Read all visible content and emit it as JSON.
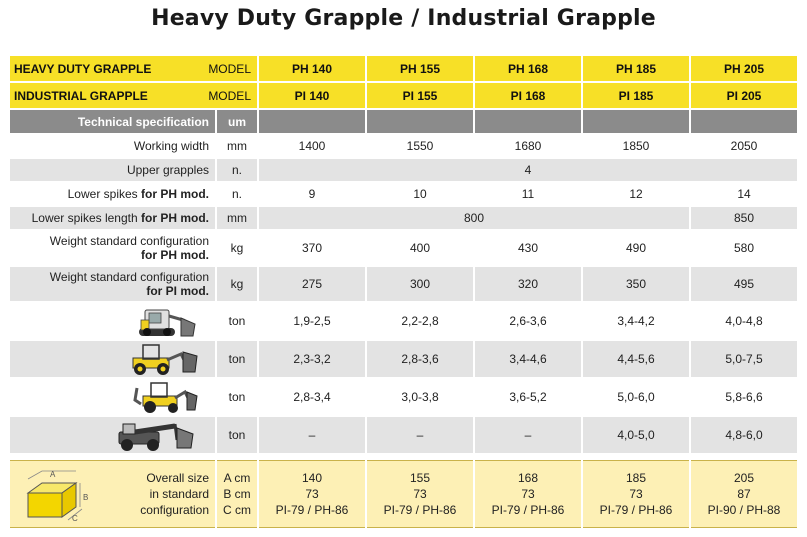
{
  "title": "Heavy Duty Grapple / Industrial Grapple",
  "header_rows": [
    {
      "name": "HEAVY DUTY GRAPPLE",
      "model_label": "MODEL",
      "models": [
        "PH 140",
        "PH 155",
        "PH 168",
        "PH 185",
        "PH 205"
      ]
    },
    {
      "name": "INDUSTRIAL GRAPPLE",
      "model_label": "MODEL",
      "models": [
        "PI 140",
        "PI 155",
        "PI 168",
        "PI 185",
        "PI 205"
      ]
    }
  ],
  "spec_header": {
    "label": "Technical specification",
    "um": "um"
  },
  "rows": {
    "working_width": {
      "label": "Working width",
      "um": "mm",
      "values": [
        "1400",
        "1550",
        "1680",
        "1850",
        "2050"
      ]
    },
    "upper_grapples": {
      "label": "Upper grapples",
      "um": "n.",
      "value": "4"
    },
    "lower_spikes": {
      "label": "Lower spikes ",
      "label_bold": "for PH mod.",
      "um": "n.",
      "values": [
        "9",
        "10",
        "11",
        "12",
        "14"
      ]
    },
    "lower_spikes_length": {
      "label": "Lower spikes length ",
      "label_bold": "for PH mod.",
      "um": "mm",
      "value_span": "800",
      "value_last": "850"
    },
    "weight_ph": {
      "label": "Weight standard configuration",
      "label_bold": "for PH mod.",
      "um": "kg",
      "values": [
        "370",
        "400",
        "430",
        "490",
        "580"
      ]
    },
    "weight_pi": {
      "label": "Weight standard configuration",
      "label_bold": "for PI mod.",
      "um": "kg",
      "values": [
        "275",
        "300",
        "320",
        "350",
        "495"
      ]
    }
  },
  "vehicles": [
    {
      "icon": "skid-steer-loader-icon",
      "um": "ton",
      "values": [
        "1,9-2,5",
        "2,2-2,8",
        "2,6-3,6",
        "3,4-4,2",
        "4,0-4,8"
      ]
    },
    {
      "icon": "wheel-loader-icon",
      "um": "ton",
      "values": [
        "2,3-3,2",
        "2,8-3,6",
        "3,4-4,6",
        "4,4-5,6",
        "5,0-7,5"
      ]
    },
    {
      "icon": "backhoe-loader-icon",
      "um": "ton",
      "values": [
        "2,8-3,4",
        "3,0-3,8",
        "3,6-5,2",
        "5,0-6,0",
        "5,8-6,6"
      ]
    },
    {
      "icon": "telehandler-icon",
      "um": "ton",
      "values": [
        "–",
        "–",
        "–",
        "4,0-5,0",
        "4,8-6,0"
      ]
    }
  ],
  "overall": {
    "label_lines": [
      "Overall size",
      "in standard",
      "configuration"
    ],
    "um_lines": [
      "A cm",
      "B cm",
      "C cm"
    ],
    "box_labels": [
      "A",
      "B",
      "C"
    ],
    "values": [
      [
        "140",
        "73",
        "PI-79 / PH-86"
      ],
      [
        "155",
        "73",
        "PI-79 / PH-86"
      ],
      [
        "168",
        "73",
        "PI-79 / PH-86"
      ],
      [
        "185",
        "73",
        "PI-79 / PH-86"
      ],
      [
        "205",
        "87",
        "PI-90 / PH-88"
      ]
    ]
  },
  "colors": {
    "header_yellow": "#f7e027",
    "spec_gray": "#8b8b8b",
    "row_gray": "#e3e3e3",
    "bottom_yellow": "#fdf0b5"
  }
}
